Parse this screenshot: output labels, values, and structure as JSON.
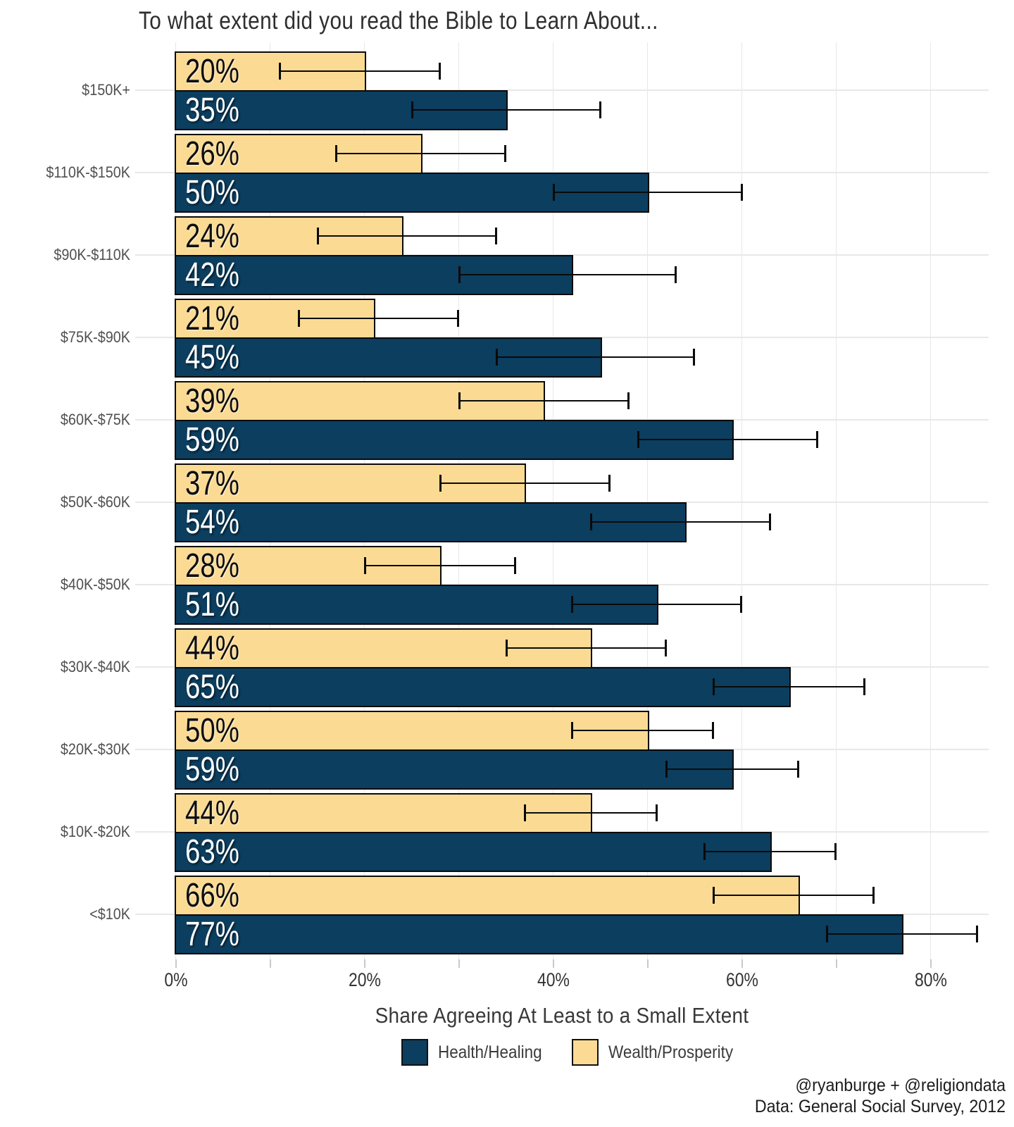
{
  "header": {
    "title": "To what extent did you read the Bible to Learn About..."
  },
  "chart_data": {
    "type": "bar",
    "orientation": "horizontal_grouped",
    "title": "To what extent did you read the Bible to Learn About...",
    "xlabel": "Share Agreeing At Least to a Small Extent",
    "xlim": [
      0,
      88
    ],
    "x_tick_values": [
      0,
      20,
      40,
      60,
      80
    ],
    "x_tick_labels": [
      "0%",
      "20%",
      "40%",
      "60%",
      "80%"
    ],
    "minor_tick_step": 10,
    "grid": true,
    "value_label_format": "percent",
    "error_bars": true,
    "legend_position": "bottom",
    "bar_order_top_to_bottom": [
      "Wealth/Prosperity",
      "Health/Healing"
    ],
    "categories": [
      "$150K+",
      "$110K-$150K",
      "$90K-$110K",
      "$75K-$90K",
      "$60K-$75K",
      "$50K-$60K",
      "$40K-$50K",
      "$30K-$40K",
      "$20K-$30K",
      "$10K-$20K",
      "<$10K"
    ],
    "series": [
      {
        "name": "Health/Healing",
        "color": "#0c3e5f",
        "values": [
          35,
          50,
          42,
          45,
          59,
          54,
          51,
          65,
          59,
          63,
          77
        ],
        "ci_low": [
          25,
          40,
          30,
          34,
          49,
          44,
          42,
          57,
          52,
          56,
          69
        ],
        "ci_high": [
          45,
          60,
          53,
          55,
          68,
          63,
          60,
          73,
          66,
          70,
          85
        ]
      },
      {
        "name": "Wealth/Prosperity",
        "color": "#fbdb93",
        "values": [
          20,
          26,
          24,
          21,
          39,
          37,
          28,
          44,
          50,
          44,
          66
        ],
        "ci_low": [
          11,
          17,
          15,
          13,
          30,
          28,
          20,
          35,
          42,
          37,
          57
        ],
        "ci_high": [
          28,
          35,
          34,
          30,
          48,
          46,
          36,
          52,
          57,
          51,
          74
        ]
      }
    ]
  },
  "legend": {
    "items": [
      {
        "label": "Health/Healing",
        "color": "#0c3e5f"
      },
      {
        "label": "Wealth/Prosperity",
        "color": "#fbdb93"
      }
    ]
  },
  "footer": {
    "credit": "@ryanburge + @religiondata",
    "source": "Data: General Social Survey, 2012"
  },
  "colors": {
    "health_bar": "#0c3e5f",
    "wealth_bar": "#fbdb93",
    "bar_border": "#0a0a0a",
    "gridline": "#e8e8e8",
    "tick": "#c9c9c9",
    "title_text": "#2e2e2e",
    "axis_text": "#333333",
    "y_label_text": "#4f4f4f",
    "background": "#ffffff"
  }
}
